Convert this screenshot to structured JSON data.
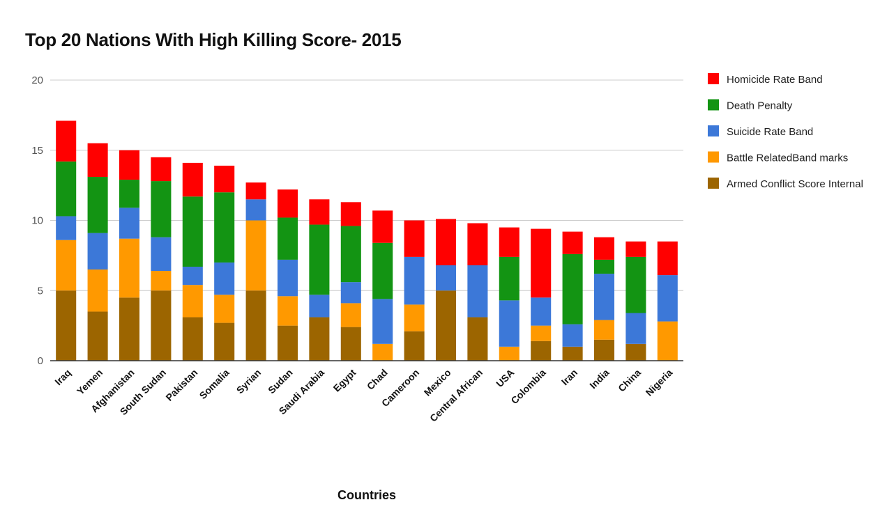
{
  "chart_data": {
    "type": "bar",
    "stacked": true,
    "title": "Top 20 Nations With High Killing Score- 2015",
    "xlabel": "Countries",
    "ylabel": "",
    "ylim": [
      0,
      20
    ],
    "yticks": [
      0,
      5,
      10,
      15,
      20
    ],
    "grid": true,
    "legend_position": "right",
    "categories": [
      "Iraq",
      "Yemen",
      "Afghanistan",
      "South Sudan",
      "Pakistan",
      "Somalia",
      "Syrian",
      "Sudan",
      "Saudi Arabia",
      "Egypt",
      "Chad",
      "Cameroon",
      "Mexico",
      "Central African",
      "USA",
      "Colombia",
      "Iran",
      "India",
      "China",
      "Nigeria"
    ],
    "series": [
      {
        "name": "Armed Conflict Score Internal",
        "color": "#9c6500",
        "values": [
          5.0,
          3.5,
          4.5,
          5.0,
          3.1,
          2.7,
          5.0,
          2.5,
          3.1,
          2.4,
          0,
          2.1,
          5.0,
          3.1,
          0,
          1.4,
          1.0,
          1.5,
          1.2,
          0
        ]
      },
      {
        "name": "Battle RelatedBand marks",
        "color": "#ff9900",
        "values": [
          3.6,
          3.0,
          4.2,
          1.4,
          2.3,
          2.0,
          5.0,
          2.1,
          0,
          1.7,
          1.2,
          1.9,
          0,
          0,
          1.0,
          1.1,
          0,
          1.4,
          0,
          2.8
        ]
      },
      {
        "name": "Suicide Rate Band",
        "color": "#3c78d8",
        "values": [
          1.7,
          2.6,
          2.2,
          2.4,
          1.3,
          2.3,
          1.5,
          2.6,
          1.6,
          1.5,
          3.2,
          3.4,
          1.8,
          3.7,
          3.3,
          2.0,
          1.6,
          3.3,
          2.2,
          3.3
        ]
      },
      {
        "name": "Death Penalty",
        "color": "#139413",
        "values": [
          3.9,
          4.0,
          2.0,
          4.0,
          5.0,
          5.0,
          0,
          3.0,
          5.0,
          4.0,
          4.0,
          0,
          0,
          0,
          3.1,
          0,
          5.0,
          1.0,
          4.0,
          0
        ]
      },
      {
        "name": "Homicide Rate Band",
        "color": "#ff0000",
        "values": [
          2.9,
          2.4,
          2.1,
          1.7,
          2.4,
          1.9,
          1.2,
          2.0,
          1.8,
          1.7,
          2.3,
          2.6,
          3.3,
          3.0,
          2.1,
          4.9,
          1.6,
          1.6,
          1.1,
          2.4
        ]
      }
    ]
  }
}
